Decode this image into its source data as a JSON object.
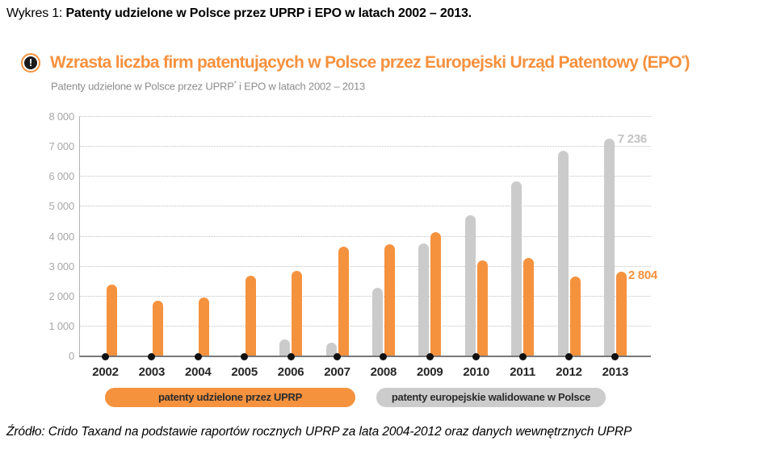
{
  "page": {
    "title_prefix": "Wykres 1: ",
    "title_bold": "Patenty udzielone w Polsce przez UPRP i EPO  w latach 2002 – 2013."
  },
  "infographic": {
    "icon_glyph": "!",
    "heading_main": "Wzrasta liczba firm patentujących w Polsce przez Europejski Urząd Patentowy (EPO",
    "heading_sup": "*",
    "heading_close": ")",
    "subtitle_main": "Patenty udzielone w Polsce przez UPRP",
    "subtitle_sup": "*",
    "subtitle_rest": " i EPO w latach 2002 – 2013"
  },
  "chart_data": {
    "type": "bar",
    "title": "Patenty udzielone w Polsce przez UPRP i EPO w latach 2002 – 2013",
    "categories": [
      "2002",
      "2003",
      "2004",
      "2005",
      "2006",
      "2007",
      "2008",
      "2009",
      "2010",
      "2011",
      "2012",
      "2013"
    ],
    "series": [
      {
        "key": "uprp",
        "name": "patenty udzielone przez UPRP",
        "color": "#F5923E",
        "values": [
          2361,
          1829,
          1946,
          2668,
          2835,
          3633,
          3728,
          4116,
          3173,
          3252,
          2651,
          2804
        ]
      },
      {
        "key": "epo",
        "name": "patenty europejskie walidowane w Polsce",
        "color": "#CBCBCB",
        "values": [
          0,
          0,
          0,
          0,
          533,
          425,
          2268,
          3752,
          4678,
          5825,
          6845,
          7236
        ]
      }
    ],
    "ylim": [
      0,
      8000
    ],
    "ytick_step": 1000,
    "ytick_labels": [
      "0",
      "1 000",
      "2 000",
      "3 000",
      "4 000",
      "5 000",
      "6 000",
      "7 000",
      "8 000"
    ],
    "grid": "dotted-horizontal",
    "legend_position": "bottom",
    "value_labels": [
      {
        "category": "2013",
        "series": "epo",
        "text": "7 236",
        "color": "#C2C2C2"
      },
      {
        "category": "2013",
        "series": "uprp",
        "text": "2 804",
        "color": "#F5923E"
      }
    ]
  },
  "source": {
    "text": "Źródło: Crido Taxand na podstawie raportów rocznych UPRP za lata 2004-2012 oraz danych wewnętrznych UPRP"
  }
}
